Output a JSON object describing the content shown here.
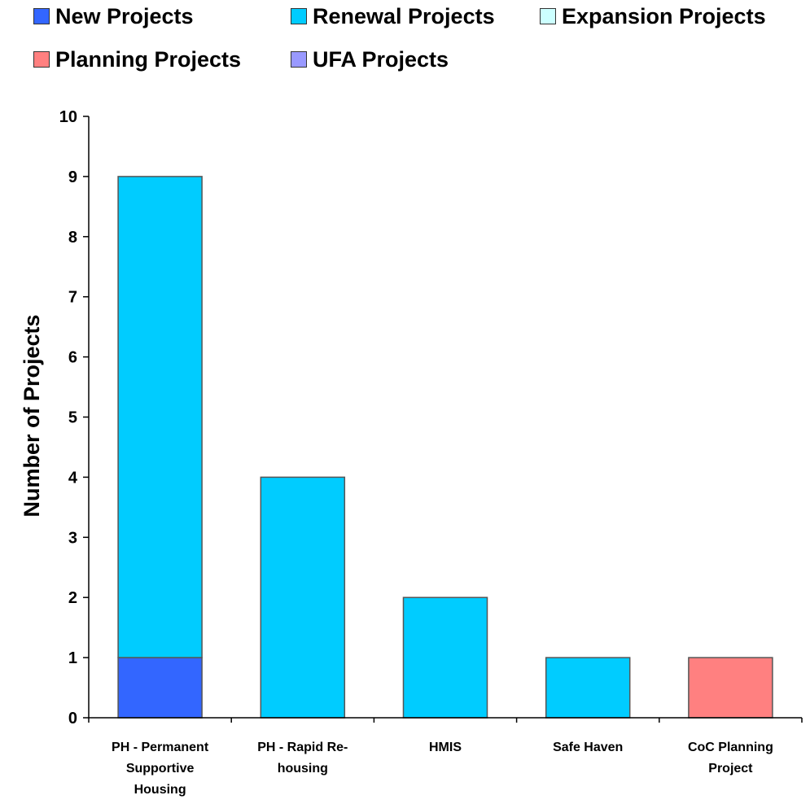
{
  "chart_data": {
    "type": "bar",
    "stacked": true,
    "title": "",
    "xlabel": "",
    "ylabel": "Number of Projects",
    "ylim": [
      0,
      10
    ],
    "yticks": [
      0,
      1,
      2,
      3,
      4,
      5,
      6,
      7,
      8,
      9,
      10
    ],
    "grid": false,
    "legend_position": "top",
    "categories": [
      [
        "PH - Permanent",
        "Supportive",
        "Housing"
      ],
      [
        "PH - Rapid Re-",
        "housing"
      ],
      [
        "HMIS"
      ],
      [
        "Safe Haven"
      ],
      [
        "CoC Planning",
        "Project"
      ]
    ],
    "series": [
      {
        "name": "New Projects",
        "color": "#3366ff",
        "values": [
          1,
          0,
          0,
          0,
          0
        ]
      },
      {
        "name": "Renewal Projects",
        "color": "#00ccff",
        "values": [
          8,
          4,
          2,
          1,
          0
        ]
      },
      {
        "name": "Expansion Projects",
        "color": "#ccffff",
        "values": [
          0,
          0,
          0,
          0,
          0
        ]
      },
      {
        "name": "Planning Projects",
        "color": "#ff8080",
        "values": [
          0,
          0,
          0,
          0,
          1
        ]
      },
      {
        "name": "UFA Projects",
        "color": "#9999ff",
        "values": [
          0,
          0,
          0,
          0,
          0
        ]
      }
    ]
  }
}
